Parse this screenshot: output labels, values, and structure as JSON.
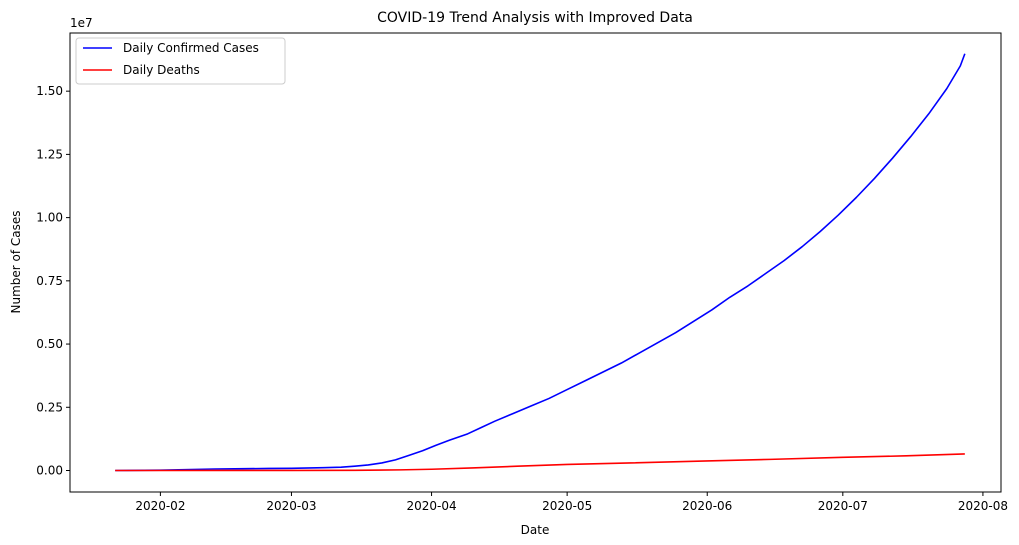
{
  "chart_data": {
    "type": "line",
    "title": "COVID-19 Trend Analysis with Improved Data",
    "xlabel": "Date",
    "ylabel": "Number of Cases",
    "y_offset_label": "1e7",
    "x_ticks": [
      "2020-02",
      "2020-03",
      "2020-04",
      "2020-05",
      "2020-06",
      "2020-07",
      "2020-08"
    ],
    "y_ticks": [
      "0.00",
      "0.25",
      "0.50",
      "0.75",
      "1.00",
      "1.25",
      "1.50"
    ],
    "y_tick_values": [
      0,
      2500000,
      5000000,
      7500000,
      10000000,
      12500000,
      15000000
    ],
    "xlim": [
      "2020-01-12",
      "2020-08-05"
    ],
    "ylim": [
      -850000,
      17300000
    ],
    "legend_position": "top-left",
    "grid": false,
    "series": [
      {
        "name": "Daily Confirmed Cases",
        "color": "#0000ff",
        "points": [
          [
            "2020-01-22",
            555
          ],
          [
            "2020-02-01",
            12000
          ],
          [
            "2020-02-13",
            60000
          ],
          [
            "2020-02-25",
            80000
          ],
          [
            "2020-03-01",
            88000
          ],
          [
            "2020-03-08",
            110000
          ],
          [
            "2020-03-12",
            130000
          ],
          [
            "2020-03-15",
            170000
          ],
          [
            "2020-03-18",
            220000
          ],
          [
            "2020-03-21",
            300000
          ],
          [
            "2020-03-24",
            420000
          ],
          [
            "2020-03-27",
            600000
          ],
          [
            "2020-03-30",
            780000
          ],
          [
            "2020-04-02",
            1000000
          ],
          [
            "2020-04-05",
            1200000
          ],
          [
            "2020-04-09",
            1450000
          ],
          [
            "2020-04-12",
            1700000
          ],
          [
            "2020-04-15",
            1950000
          ],
          [
            "2020-04-19",
            2250000
          ],
          [
            "2020-04-23",
            2550000
          ],
          [
            "2020-04-27",
            2850000
          ],
          [
            "2020-05-01",
            3200000
          ],
          [
            "2020-05-05",
            3550000
          ],
          [
            "2020-05-09",
            3900000
          ],
          [
            "2020-05-13",
            4250000
          ],
          [
            "2020-05-17",
            4650000
          ],
          [
            "2020-05-21",
            5050000
          ],
          [
            "2020-05-25",
            5450000
          ],
          [
            "2020-05-29",
            5900000
          ],
          [
            "2020-06-02",
            6350000
          ],
          [
            "2020-06-06",
            6850000
          ],
          [
            "2020-06-10",
            7300000
          ],
          [
            "2020-06-14",
            7800000
          ],
          [
            "2020-06-18",
            8300000
          ],
          [
            "2020-06-22",
            8850000
          ],
          [
            "2020-06-26",
            9450000
          ],
          [
            "2020-06-30",
            10100000
          ],
          [
            "2020-07-04",
            10800000
          ],
          [
            "2020-07-08",
            11550000
          ],
          [
            "2020-07-12",
            12350000
          ],
          [
            "2020-07-16",
            13200000
          ],
          [
            "2020-07-20",
            14100000
          ],
          [
            "2020-07-24",
            15100000
          ],
          [
            "2020-07-27",
            16000000
          ],
          [
            "2020-07-28",
            16480000
          ]
        ]
      },
      {
        "name": "Daily Deaths",
        "color": "#ff0000",
        "points": [
          [
            "2020-01-22",
            17
          ],
          [
            "2020-02-15",
            1600
          ],
          [
            "2020-03-01",
            3000
          ],
          [
            "2020-03-15",
            6500
          ],
          [
            "2020-03-25",
            25000
          ],
          [
            "2020-04-01",
            50000
          ],
          [
            "2020-04-10",
            100000
          ],
          [
            "2020-04-20",
            170000
          ],
          [
            "2020-05-01",
            240000
          ],
          [
            "2020-05-15",
            300000
          ],
          [
            "2020-06-01",
            380000
          ],
          [
            "2020-06-15",
            440000
          ],
          [
            "2020-07-01",
            520000
          ],
          [
            "2020-07-15",
            580000
          ],
          [
            "2020-07-28",
            654000
          ]
        ]
      }
    ]
  }
}
